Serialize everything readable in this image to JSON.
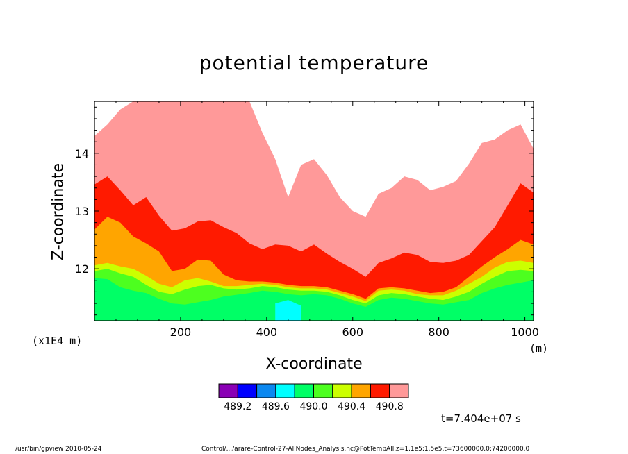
{
  "chart_data": {
    "type": "heatmap",
    "title": "potential temperature",
    "xlabel": "X-coordinate",
    "ylabel": "Z-coordinate",
    "x_scale_note": "(x1E4 m)",
    "x_unit": "(m)",
    "xlim": [
      0,
      1020
    ],
    "ylim": [
      11.1,
      14.9
    ],
    "x_ticks": [
      200,
      400,
      600,
      800,
      1000
    ],
    "y_ticks": [
      12,
      13,
      14
    ],
    "colorbar": {
      "colors": [
        "#8a00b5",
        "#0000ff",
        "#0b88f0",
        "#00ffff",
        "#00ff66",
        "#4dff1f",
        "#ccff00",
        "#ffa500",
        "#ff1a00",
        "#ff9999",
        "#ffffff"
      ],
      "labels": [
        "489.2",
        "489.6",
        "490.0",
        "490.4",
        "490.8"
      ]
    },
    "contour_levels_z": {
      "x": [
        0,
        30,
        60,
        90,
        120,
        150,
        180,
        210,
        240,
        270,
        300,
        330,
        360,
        390,
        420,
        450,
        480,
        510,
        540,
        570,
        600,
        630,
        660,
        690,
        720,
        750,
        780,
        810,
        840,
        870,
        900,
        930,
        960,
        990,
        1020
      ],
      "cyan_top": [
        null,
        null,
        null,
        null,
        null,
        null,
        null,
        null,
        null,
        null,
        null,
        null,
        null,
        null,
        11.4,
        11.46,
        11.36,
        null,
        null,
        null,
        null,
        null,
        null,
        null,
        null,
        null,
        null,
        null,
        null,
        null,
        null,
        null,
        null,
        null,
        null
      ],
      "green_top": [
        11.84,
        11.82,
        11.68,
        11.62,
        11.58,
        11.48,
        11.4,
        11.38,
        11.42,
        11.46,
        11.52,
        11.55,
        11.58,
        11.62,
        11.6,
        11.56,
        11.54,
        11.56,
        11.54,
        11.48,
        11.4,
        11.34,
        11.46,
        11.5,
        11.48,
        11.44,
        11.4,
        11.38,
        11.42,
        11.46,
        11.58,
        11.66,
        11.72,
        11.76,
        11.8
      ],
      "lime_top": [
        11.96,
        12.0,
        11.92,
        11.86,
        11.72,
        11.6,
        11.56,
        11.64,
        11.7,
        11.72,
        11.66,
        11.64,
        11.66,
        11.7,
        11.68,
        11.64,
        11.62,
        11.62,
        11.6,
        11.54,
        11.46,
        11.4,
        11.54,
        11.58,
        11.56,
        11.52,
        11.48,
        11.46,
        11.52,
        11.6,
        11.74,
        11.86,
        11.96,
        11.98,
        11.96
      ],
      "yellow_top": [
        12.06,
        12.1,
        12.04,
        12.0,
        11.88,
        11.74,
        11.68,
        11.8,
        11.84,
        11.78,
        11.7,
        11.7,
        11.72,
        11.74,
        11.72,
        11.68,
        11.66,
        11.66,
        11.64,
        11.58,
        11.52,
        11.44,
        11.62,
        11.64,
        11.62,
        11.56,
        11.54,
        11.54,
        11.62,
        11.74,
        11.86,
        12.02,
        12.12,
        12.14,
        12.1
      ],
      "orange_top": [
        12.68,
        12.9,
        12.8,
        12.56,
        12.44,
        12.3,
        11.96,
        12.0,
        12.16,
        12.14,
        11.9,
        11.8,
        11.78,
        11.78,
        11.76,
        11.72,
        11.7,
        11.7,
        11.68,
        11.62,
        11.56,
        11.48,
        11.66,
        11.68,
        11.66,
        11.62,
        11.58,
        11.6,
        11.68,
        11.86,
        12.04,
        12.2,
        12.34,
        12.5,
        12.42
      ],
      "red_top": [
        13.46,
        13.6,
        13.36,
        13.1,
        13.24,
        12.92,
        12.66,
        12.7,
        12.82,
        12.84,
        12.72,
        12.62,
        12.44,
        12.34,
        12.42,
        12.4,
        12.3,
        12.42,
        12.26,
        12.12,
        12.0,
        11.86,
        12.1,
        12.18,
        12.28,
        12.24,
        12.12,
        12.1,
        12.14,
        12.24,
        12.48,
        12.72,
        13.1,
        13.48,
        13.32
      ],
      "pink_top": [
        14.3,
        14.5,
        14.76,
        14.9,
        14.9,
        14.9,
        14.9,
        14.9,
        14.9,
        14.9,
        14.9,
        14.9,
        14.9,
        14.36,
        13.9,
        13.24,
        13.8,
        13.9,
        13.62,
        13.24,
        13.0,
        12.9,
        13.3,
        13.4,
        13.6,
        13.54,
        13.36,
        13.42,
        13.52,
        13.82,
        14.18,
        14.24,
        14.4,
        14.5,
        14.08
      ]
    },
    "annotation": "t=7.404e+07 s"
  },
  "footer": {
    "left": "/usr/bin/gpview   2010-05-24",
    "right": "Control/.../arare-Control-27-AllNodes_Analysis.nc@PotTempAll,z=1.1e5:1.5e5,t=73600000.0:74200000.0"
  }
}
